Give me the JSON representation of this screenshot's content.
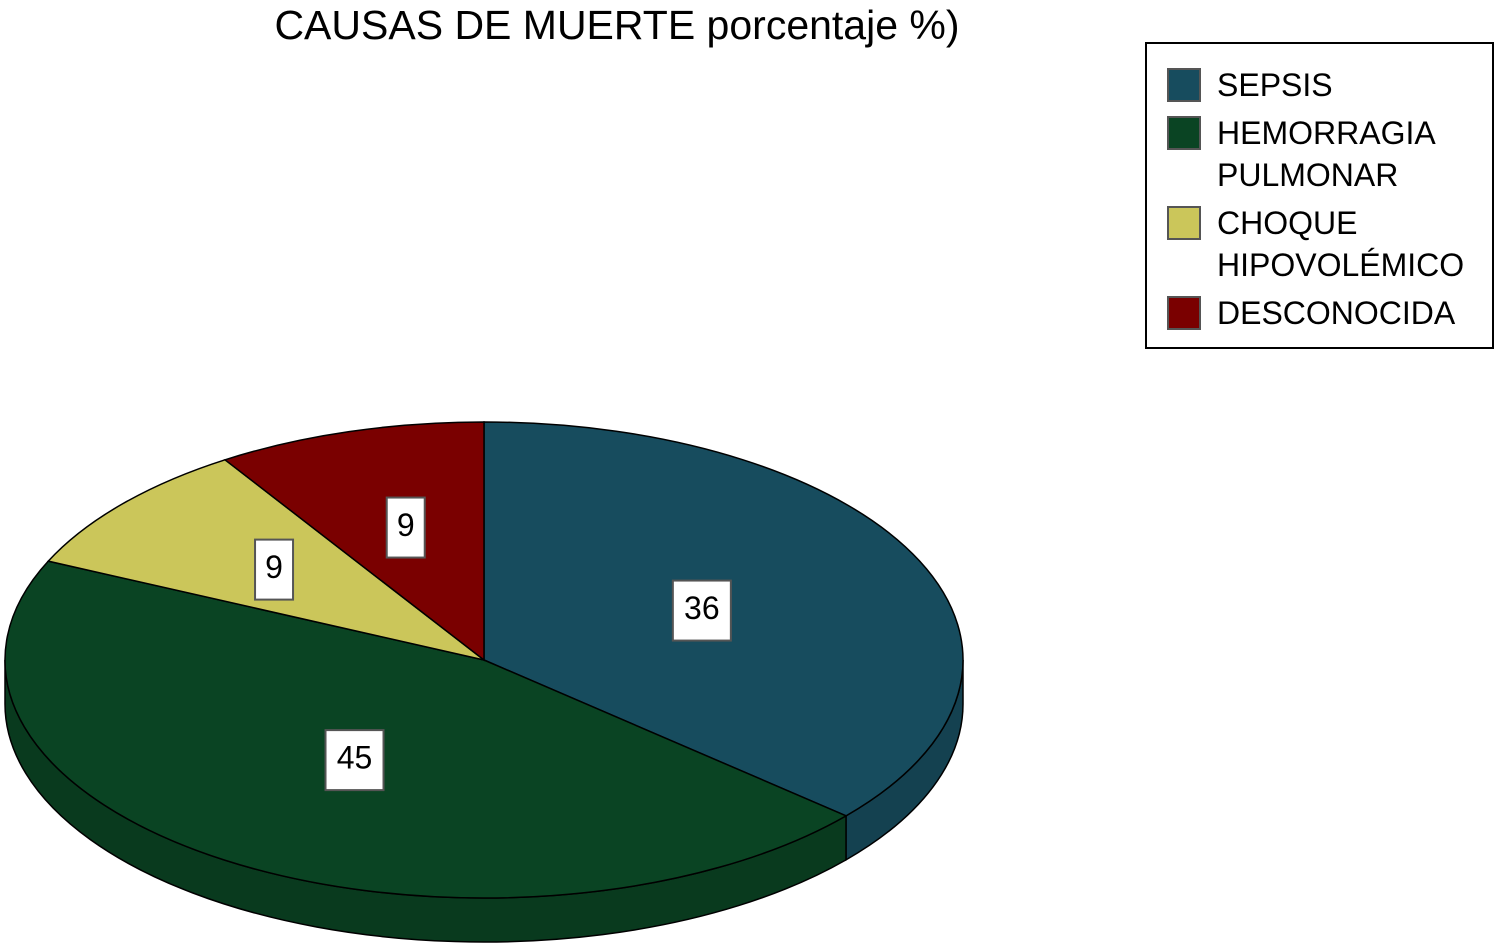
{
  "chart_data": {
    "type": "pie",
    "title": "CAUSAS DE MUERTE porcentaje %)",
    "categories": [
      "SEPSIS",
      "HEMORRAGIA PULMONAR",
      "CHOQUE HIPOVOLÉMICO",
      "DESCONOCIDA"
    ],
    "values": [
      36,
      45,
      9,
      9
    ],
    "colors": [
      "#174c5e",
      "#0a4423",
      "#cbc65a",
      "#7a0000"
    ],
    "legend": "top-right"
  }
}
